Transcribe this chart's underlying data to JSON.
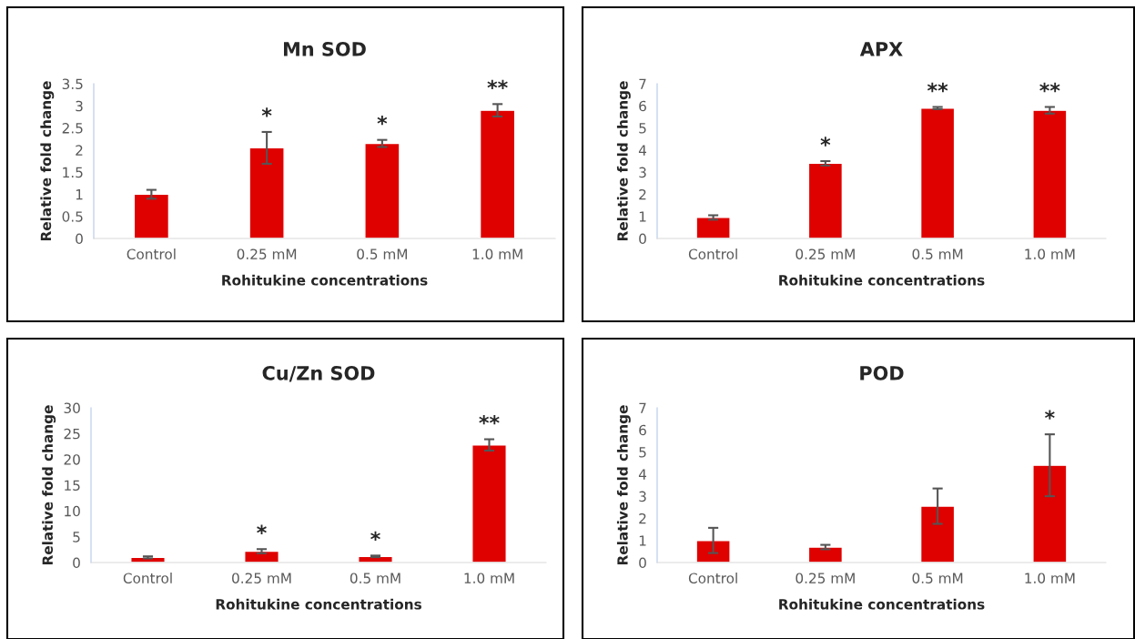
{
  "chart_data": [
    {
      "type": "bar",
      "title": "Mn SOD",
      "xlabel": "Rohitukine concentrations",
      "ylabel": "Relative fold change",
      "categories": [
        "Control",
        "0.25 mM",
        "0.5 mM",
        "1.0 mM"
      ],
      "values": [
        1.0,
        2.05,
        2.15,
        2.9
      ],
      "errors": [
        0.1,
        0.36,
        0.08,
        0.14
      ],
      "color": "#df0000",
      "ylim": [
        0,
        3.5
      ],
      "yticks": [
        0,
        0.5,
        1,
        1.5,
        2,
        2.5,
        3,
        3.5
      ],
      "grid": false,
      "value_labels": [
        null,
        "*",
        "*",
        "**"
      ]
    },
    {
      "type": "bar",
      "title": "APX",
      "xlabel": "Rohitukine concentrations",
      "ylabel": "Relative fold change",
      "categories": [
        "Control",
        "0.25 mM",
        "0.5 mM",
        "1.0 mM"
      ],
      "values": [
        0.95,
        3.4,
        5.9,
        5.8
      ],
      "errors": [
        0.1,
        0.1,
        0.05,
        0.15
      ],
      "color": "#df0000",
      "ylim": [
        0,
        7
      ],
      "yticks": [
        0,
        1,
        2,
        3,
        4,
        5,
        6,
        7
      ],
      "grid": false,
      "value_labels": [
        null,
        "*",
        "**",
        "**"
      ]
    },
    {
      "type": "bar",
      "title": "Cu/Zn SOD",
      "xlabel": "Rohitukine concentrations",
      "ylabel": "Relative fold change",
      "categories": [
        "Control",
        "0.25 mM",
        "0.5 mM",
        "1.0 mM"
      ],
      "values": [
        1.0,
        2.2,
        1.2,
        22.8
      ],
      "errors": [
        0.2,
        0.4,
        0.15,
        1.1
      ],
      "color": "#df0000",
      "ylim": [
        0,
        30
      ],
      "yticks": [
        0,
        5,
        10,
        15,
        20,
        25,
        30
      ],
      "grid": false,
      "value_labels": [
        null,
        "*",
        "*",
        "**"
      ]
    },
    {
      "type": "bar",
      "title": "POD",
      "xlabel": "Rohitukine concentrations",
      "ylabel": "Relative fold change",
      "categories": [
        "Control",
        "0.25 mM",
        "0.5 mM",
        "1.0 mM"
      ],
      "values": [
        1.0,
        0.7,
        2.55,
        4.4
      ],
      "errors": [
        0.57,
        0.1,
        0.8,
        1.4
      ],
      "color": "#df0000",
      "ylim": [
        0,
        7
      ],
      "yticks": [
        0,
        1,
        2,
        3,
        4,
        5,
        6,
        7
      ],
      "grid": false,
      "value_labels": [
        null,
        null,
        null,
        "*"
      ]
    }
  ]
}
